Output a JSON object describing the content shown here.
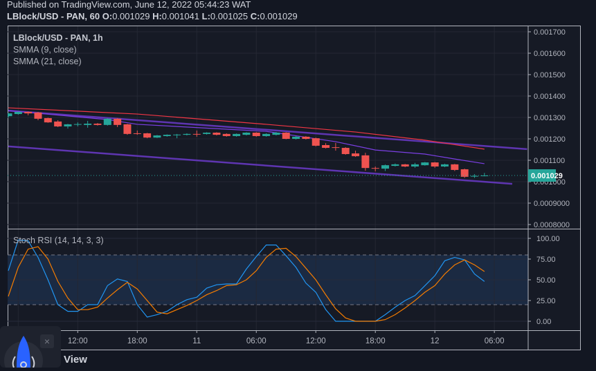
{
  "header": {
    "published": "Published on TradingView.com, June 12, 2022 05:44:23 WAT",
    "symbol": "LBlock/USD - PAN, 60",
    "ohlc": [
      {
        "label": "O:",
        "value": "0.001029"
      },
      {
        "label": "H:",
        "value": "0.001041"
      },
      {
        "label": "L:",
        "value": "0.001025"
      },
      {
        "label": "C:",
        "value": "0.001029"
      }
    ]
  },
  "legend": {
    "title": "LBlock/USD - PAN, 1h",
    "smma9": "SMMA (9, close)",
    "smma21": "SMMA (21, close)",
    "stoch": "Stoch RSI (14, 14, 3, 3)"
  },
  "widget": {
    "close_icon": "×",
    "label": "View"
  },
  "colors": {
    "up": "#26a69a",
    "down": "#ef5350",
    "smma9": "#7b3fe4",
    "smma21": "#f23645",
    "trendline": "#5e35b1",
    "stoch_k": "#2196f3",
    "stoch_d": "#f57c00",
    "price_badge": "#26a69a"
  },
  "chart_data": [
    {
      "type": "candlestick",
      "title": "LBlock/USD - PAN, 1h",
      "x_tick_labels": [
        {
          "index": 7,
          "label": "12:00"
        },
        {
          "index": 13,
          "label": "18:00"
        },
        {
          "index": 19,
          "label": "11"
        },
        {
          "index": 25,
          "label": "06:00"
        },
        {
          "index": 31,
          "label": "12:00"
        },
        {
          "index": 37,
          "label": "18:00"
        },
        {
          "index": 43,
          "label": "12"
        },
        {
          "index": 49,
          "label": "06:00"
        }
      ],
      "y_tick_labels": [
        "0.001700",
        "0.001600",
        "0.001500",
        "0.001400",
        "0.001300",
        "0.001200",
        "0.001100",
        "0.001000",
        "0.0009000",
        "0.0008000"
      ],
      "ylim": [
        0.0008,
        0.0017
      ],
      "last_price": "0.001029",
      "grid": true,
      "ohlc": [
        [
          0.001306,
          0.00132,
          0.0013,
          0.001319
        ],
        [
          0.001316,
          0.001328,
          0.001313,
          0.001326
        ],
        [
          0.001326,
          0.001328,
          0.00131,
          0.001319
        ],
        [
          0.001323,
          0.001326,
          0.001287,
          0.001294
        ],
        [
          0.001297,
          0.001299,
          0.001275,
          0.001277
        ],
        [
          0.001281,
          0.001287,
          0.001255,
          0.001258
        ],
        [
          0.001258,
          0.00127,
          0.001248,
          0.001268
        ],
        [
          0.001268,
          0.001277,
          0.001258,
          0.001269
        ],
        [
          0.001265,
          0.001284,
          0.001252,
          0.001271
        ],
        [
          0.001271,
          0.001274,
          0.001262,
          0.001265
        ],
        [
          0.001265,
          0.001297,
          0.001262,
          0.001294
        ],
        [
          0.001294,
          0.001297,
          0.001255,
          0.001265
        ],
        [
          0.001268,
          0.00127,
          0.001219,
          0.001223
        ],
        [
          0.001226,
          0.001239,
          0.001219,
          0.001225
        ],
        [
          0.001226,
          0.001228,
          0.001203,
          0.001206
        ],
        [
          0.001206,
          0.001218,
          0.001204,
          0.001216
        ],
        [
          0.001213,
          0.001221,
          0.00121,
          0.001219
        ],
        [
          0.001219,
          0.001223,
          0.001203,
          0.00122
        ],
        [
          0.001219,
          0.001226,
          0.001216,
          0.001223
        ],
        [
          0.001223,
          0.001239,
          0.00121,
          0.001222
        ],
        [
          0.001223,
          0.001231,
          0.00122,
          0.001229
        ],
        [
          0.001229,
          0.001231,
          0.001216,
          0.001219
        ],
        [
          0.001223,
          0.001226,
          0.00121,
          0.001213
        ],
        [
          0.001213,
          0.001225,
          0.00121,
          0.001223
        ],
        [
          0.001219,
          0.001231,
          0.001216,
          0.001229
        ],
        [
          0.001229,
          0.001231,
          0.00121,
          0.001213
        ],
        [
          0.001213,
          0.001226,
          0.00121,
          0.001223
        ],
        [
          0.001219,
          0.001232,
          0.001216,
          0.001229
        ],
        [
          0.001229,
          0.001231,
          0.001198,
          0.0012
        ],
        [
          0.0012,
          0.001213,
          0.001197,
          0.00121
        ],
        [
          0.00121,
          0.001213,
          0.001197,
          0.0012
        ],
        [
          0.001203,
          0.001206,
          0.001165,
          0.001168
        ],
        [
          0.001171,
          0.00118,
          0.001155,
          0.001158
        ],
        [
          0.001161,
          0.001181,
          0.001145,
          0.00116
        ],
        [
          0.001158,
          0.001161,
          0.001126,
          0.001129
        ],
        [
          0.001132,
          0.001145,
          0.001116,
          0.001119
        ],
        [
          0.001123,
          0.001135,
          0.001051,
          0.001064
        ],
        [
          0.001064,
          0.001071,
          0.001048,
          0.001063
        ],
        [
          0.001061,
          0.00108,
          0.00105,
          0.001077
        ],
        [
          0.001074,
          0.001085,
          0.001071,
          0.001081
        ],
        [
          0.001081,
          0.001083,
          0.001068,
          0.001071
        ],
        [
          0.001071,
          0.001088,
          0.001065,
          0.001081
        ],
        [
          0.001077,
          0.001092,
          0.001075,
          0.00109
        ],
        [
          0.00109,
          0.001092,
          0.001065,
          0.001071
        ],
        [
          0.001071,
          0.001084,
          0.001068,
          0.001081
        ],
        [
          0.001081,
          0.001083,
          0.00105,
          0.001055
        ],
        [
          0.001058,
          0.001061,
          0.001018,
          0.001023
        ],
        [
          0.001026,
          0.001035,
          0.001018,
          0.001027
        ],
        [
          0.001029,
          0.001041,
          0.001025,
          0.001029
        ]
      ],
      "series": [
        {
          "name": "SMMA (9, close)",
          "points": [
            [
              0,
              0.001332
            ],
            [
              10,
              0.00129
            ],
            [
              13,
              0.001268
            ],
            [
              26,
              0.001235
            ],
            [
              33,
              0.001187
            ],
            [
              37,
              0.001148
            ],
            [
              42,
              0.001129
            ],
            [
              45,
              0.001106
            ],
            [
              48,
              0.001084
            ]
          ]
        },
        {
          "name": "SMMA (21, close)",
          "points": [
            [
              0,
              0.001345
            ],
            [
              13,
              0.001316
            ],
            [
              26,
              0.001268
            ],
            [
              35,
              0.001232
            ],
            [
              42,
              0.001194
            ],
            [
              48,
              0.001152
            ]
          ]
        }
      ],
      "trendlines": [
        {
          "points": [
            [
              0,
              0.001332
            ],
            [
              52.3,
              0.001152
            ]
          ]
        },
        {
          "points": [
            [
              0,
              0.001165
            ],
            [
              50.8,
              0.00099
            ]
          ]
        }
      ]
    },
    {
      "type": "line",
      "title": "Stoch RSI (14, 14, 3, 3)",
      "ylim": [
        0,
        100
      ],
      "y_tick_labels": [
        "100.00",
        "75.00",
        "50.00",
        "25.00",
        "0.00"
      ],
      "bands": [
        20,
        80
      ],
      "series": [
        {
          "values": [
            61,
            98,
            97,
            77,
            50,
            20,
            12,
            12,
            20,
            20,
            43,
            51,
            48,
            20,
            5,
            8,
            12,
            20,
            26,
            29,
            40,
            44,
            45,
            45,
            63,
            78,
            92,
            92,
            79,
            65,
            46,
            35,
            14,
            0,
            0,
            0,
            0,
            0,
            8,
            17,
            25,
            31,
            43,
            55,
            73,
            77,
            74,
            57,
            48
          ]
        },
        {
          "values": [
            30,
            65,
            87,
            90,
            75,
            48,
            28,
            14,
            14,
            17,
            28,
            38,
            47,
            39,
            25,
            11,
            9,
            14,
            19,
            25,
            32,
            37,
            43,
            44,
            50,
            61,
            77,
            87,
            88,
            78,
            64,
            50,
            32,
            15,
            4,
            0,
            0,
            0,
            2,
            8,
            16,
            25,
            35,
            43,
            57,
            68,
            74,
            68,
            60
          ]
        }
      ]
    }
  ]
}
